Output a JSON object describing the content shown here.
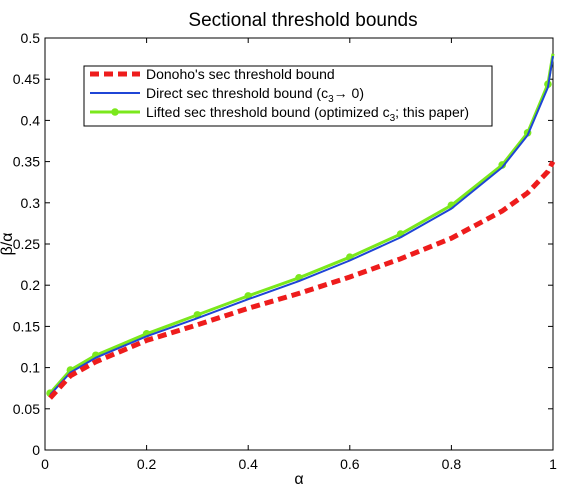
{
  "chart_data": {
    "type": "line",
    "title": "Sectional threshold bounds",
    "xlabel": "α",
    "ylabel": "β/α",
    "xlim": [
      0,
      1
    ],
    "ylim": [
      0,
      0.5
    ],
    "xticks": [
      0,
      0.2,
      0.4,
      0.6,
      0.8,
      1
    ],
    "xtick_labels": [
      "0",
      "0.2",
      "0.4",
      "0.6",
      "0.8",
      "1"
    ],
    "yticks": [
      0,
      0.05,
      0.1,
      0.15,
      0.2,
      0.25,
      0.3,
      0.35,
      0.4,
      0.45,
      0.5
    ],
    "ytick_labels": [
      "0",
      "0.05",
      "0.1",
      "0.15",
      "0.2",
      "0.25",
      "0.3",
      "0.35",
      "0.4",
      "0.45",
      "0.5"
    ],
    "grid": false,
    "legend_position": "top-left",
    "series": [
      {
        "name": "Donoho's sec threshold bound",
        "color": "#ee1c1c",
        "style": "dashed",
        "x": [
          0.01,
          0.05,
          0.1,
          0.2,
          0.3,
          0.4,
          0.5,
          0.6,
          0.7,
          0.8,
          0.9,
          0.95,
          0.99,
          1.0
        ],
        "y": [
          0.063,
          0.09,
          0.107,
          0.133,
          0.152,
          0.172,
          0.19,
          0.21,
          0.232,
          0.257,
          0.29,
          0.312,
          0.338,
          0.35
        ]
      },
      {
        "name": "Direct sec threshold bound (c",
        "name_sub": "3",
        "name_suffix": "→ 0)",
        "color": "#1f45d6",
        "style": "solid",
        "x": [
          0.01,
          0.05,
          0.1,
          0.2,
          0.3,
          0.4,
          0.5,
          0.6,
          0.7,
          0.8,
          0.9,
          0.95,
          0.99,
          1.0
        ],
        "y": [
          0.067,
          0.094,
          0.112,
          0.138,
          0.16,
          0.183,
          0.205,
          0.23,
          0.258,
          0.293,
          0.343,
          0.382,
          0.44,
          0.478
        ]
      },
      {
        "name": "Lifted sec threshold bound (optimized c",
        "name_sub": "3",
        "name_suffix": "; this paper)",
        "color": "#7be81c",
        "style": "solid-markers",
        "x": [
          0.01,
          0.05,
          0.1,
          0.2,
          0.3,
          0.4,
          0.5,
          0.6,
          0.7,
          0.8,
          0.9,
          0.95,
          0.99,
          1.0
        ],
        "y": [
          0.069,
          0.097,
          0.115,
          0.141,
          0.164,
          0.187,
          0.209,
          0.234,
          0.262,
          0.297,
          0.346,
          0.385,
          0.444,
          0.481
        ]
      }
    ]
  }
}
